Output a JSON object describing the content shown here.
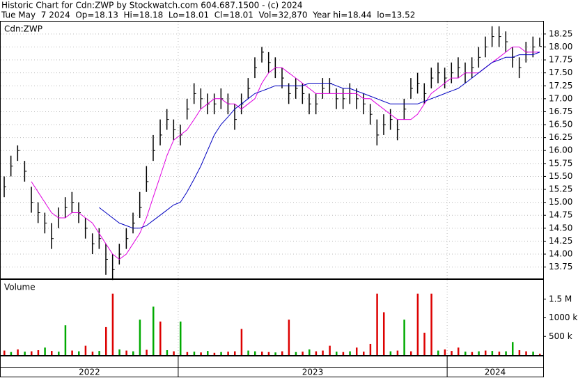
{
  "header": {
    "title": "Historic Chart for Cdn:ZWP by Stockwatch.com 604.687.1500 - (c) 2024",
    "quote": "Tue May  7 2024  Op=18.13  Hi=18.18  Lo=18.01  Cl=18.01  Vol=32,870  Year hi=18.44  lo=13.52"
  },
  "chart_data": [
    {
      "type": "ohlc",
      "label": "Cdn:ZWP",
      "color": "#000000",
      "grid": true,
      "x": [
        2022.353,
        2022.378,
        2022.403,
        2022.429,
        2022.454,
        2022.479,
        2022.504,
        2022.529,
        2022.555,
        2022.58,
        2022.605,
        2022.63,
        2022.655,
        2022.681,
        2022.706,
        2022.731,
        2022.756,
        2022.781,
        2022.807,
        2022.832,
        2022.857,
        2022.882,
        2022.907,
        2022.933,
        2022.958,
        2022.983,
        2023.008,
        2023.033,
        2023.059,
        2023.084,
        2023.109,
        2023.134,
        2023.159,
        2023.185,
        2023.21,
        2023.235,
        2023.26,
        2023.285,
        2023.311,
        2023.336,
        2023.361,
        2023.386,
        2023.411,
        2023.437,
        2023.462,
        2023.487,
        2023.512,
        2023.537,
        2023.563,
        2023.588,
        2023.613,
        2023.638,
        2023.663,
        2023.689,
        2023.714,
        2023.739,
        2023.764,
        2023.789,
        2023.815,
        2023.84,
        2023.865,
        2023.89,
        2023.915,
        2023.941,
        2023.966,
        2023.991,
        2024.016,
        2024.041,
        2024.067,
        2024.092,
        2024.117,
        2024.142,
        2024.167,
        2024.193,
        2024.218,
        2024.243,
        2024.268,
        2024.293,
        2024.319,
        2024.344
      ],
      "high": [
        15.5,
        15.9,
        16.1,
        15.8,
        15.3,
        15.0,
        14.8,
        14.6,
        14.9,
        15.1,
        15.2,
        15.0,
        14.7,
        14.4,
        14.5,
        14.2,
        14.0,
        14.2,
        14.5,
        14.8,
        15.2,
        15.7,
        16.3,
        16.6,
        16.8,
        16.6,
        16.5,
        17.0,
        17.3,
        17.2,
        17.1,
        17.1,
        17.2,
        17.1,
        16.9,
        17.1,
        17.4,
        17.8,
        18.0,
        17.9,
        17.8,
        17.6,
        17.3,
        17.4,
        17.3,
        17.1,
        17.1,
        17.4,
        17.4,
        17.2,
        17.2,
        17.3,
        17.2,
        17.1,
        16.9,
        16.6,
        16.7,
        16.8,
        16.6,
        17.0,
        17.4,
        17.5,
        17.3,
        17.6,
        17.7,
        17.6,
        17.7,
        17.8,
        17.7,
        17.8,
        18.0,
        18.2,
        18.4,
        18.4,
        18.3,
        18.0,
        17.8,
        18.1,
        18.2,
        18.18
      ],
      "low": [
        15.1,
        15.5,
        15.8,
        15.4,
        14.8,
        14.6,
        14.4,
        14.1,
        14.5,
        14.7,
        14.8,
        14.6,
        14.3,
        14.0,
        14.1,
        13.6,
        13.5,
        13.8,
        14.1,
        14.4,
        14.7,
        15.2,
        15.8,
        16.1,
        16.4,
        16.2,
        16.1,
        16.6,
        16.9,
        16.8,
        16.7,
        16.7,
        16.8,
        16.7,
        16.4,
        16.7,
        17.0,
        17.4,
        17.7,
        17.5,
        17.4,
        17.2,
        16.9,
        17.0,
        16.9,
        16.7,
        16.7,
        17.0,
        17.1,
        16.8,
        16.8,
        16.9,
        16.8,
        16.7,
        16.5,
        16.1,
        16.3,
        16.4,
        16.2,
        16.6,
        17.0,
        17.1,
        16.9,
        17.2,
        17.3,
        17.2,
        17.3,
        17.4,
        17.3,
        17.4,
        17.6,
        17.8,
        18.0,
        18.0,
        17.9,
        17.6,
        17.4,
        17.7,
        17.8,
        18.01
      ],
      "close": [
        15.3,
        15.7,
        16.0,
        15.6,
        15.0,
        14.8,
        14.6,
        14.3,
        14.7,
        14.9,
        15.0,
        14.8,
        14.5,
        14.2,
        14.3,
        13.9,
        13.7,
        14.0,
        14.3,
        14.6,
        14.9,
        15.4,
        16.0,
        16.3,
        16.6,
        16.4,
        16.3,
        16.8,
        17.1,
        17.0,
        16.9,
        16.9,
        17.0,
        16.9,
        16.6,
        16.9,
        17.2,
        17.6,
        17.9,
        17.7,
        17.6,
        17.4,
        17.1,
        17.2,
        17.1,
        16.9,
        16.9,
        17.2,
        17.3,
        17.0,
        17.0,
        17.1,
        17.0,
        16.9,
        16.7,
        16.3,
        16.5,
        16.6,
        16.4,
        16.8,
        17.2,
        17.3,
        17.1,
        17.4,
        17.5,
        17.4,
        17.5,
        17.6,
        17.5,
        17.6,
        17.8,
        18.0,
        18.2,
        18.2,
        18.1,
        17.8,
        17.6,
        17.9,
        18.0,
        18.01
      ],
      "moving_averages": [
        {
          "color": "#e000e0",
          "values": [
            null,
            null,
            null,
            null,
            15.4,
            15.2,
            15.0,
            14.8,
            14.7,
            14.7,
            14.8,
            14.8,
            14.7,
            14.6,
            14.4,
            14.2,
            14.0,
            13.9,
            14.0,
            14.2,
            14.4,
            14.7,
            15.1,
            15.5,
            15.9,
            16.2,
            16.3,
            16.4,
            16.6,
            16.8,
            16.9,
            17.0,
            17.0,
            16.9,
            16.9,
            16.8,
            16.9,
            17.0,
            17.3,
            17.5,
            17.6,
            17.6,
            17.5,
            17.4,
            17.3,
            17.2,
            17.1,
            17.1,
            17.1,
            17.1,
            17.1,
            17.1,
            17.1,
            17.0,
            17.0,
            16.9,
            16.8,
            16.7,
            16.6,
            16.6,
            16.6,
            16.7,
            16.9,
            17.1,
            17.2,
            17.3,
            17.4,
            17.4,
            17.5,
            17.5,
            17.5,
            17.6,
            17.7,
            17.8,
            17.9,
            18.0,
            18.0,
            17.9,
            17.9,
            17.9
          ]
        },
        {
          "color": "#0000c0",
          "values": [
            null,
            null,
            null,
            null,
            null,
            null,
            null,
            null,
            null,
            null,
            null,
            null,
            null,
            null,
            14.9,
            14.8,
            14.7,
            14.6,
            14.55,
            14.5,
            14.5,
            14.55,
            14.65,
            14.75,
            14.85,
            14.95,
            15.0,
            15.2,
            15.45,
            15.7,
            16.0,
            16.3,
            16.5,
            16.65,
            16.8,
            16.9,
            17.0,
            17.1,
            17.15,
            17.2,
            17.25,
            17.25,
            17.25,
            17.25,
            17.25,
            17.3,
            17.3,
            17.3,
            17.3,
            17.25,
            17.2,
            17.2,
            17.15,
            17.1,
            17.05,
            17.0,
            16.95,
            16.9,
            16.9,
            16.9,
            16.9,
            16.9,
            16.95,
            17.0,
            17.05,
            17.1,
            17.15,
            17.2,
            17.3,
            17.4,
            17.5,
            17.6,
            17.7,
            17.75,
            17.8,
            17.8,
            17.85,
            17.85,
            17.85,
            17.9
          ]
        }
      ],
      "xlim": [
        2022.34,
        2024.357
      ],
      "xticks": [
        2022,
        2023,
        2024
      ],
      "ylim": [
        13.53,
        18.49
      ],
      "yticks": [
        13.75,
        {
          "value": 14,
          "label": "14.00"
        },
        14.25,
        {
          "value": 14.5,
          "label": "14.50"
        },
        14.75,
        {
          "value": 15,
          "label": "15.00"
        },
        15.25,
        {
          "value": 15.5,
          "label": "15.50"
        },
        15.75,
        {
          "value": 16,
          "label": "16.00"
        },
        16.25,
        {
          "value": 16.5,
          "label": "16.50"
        },
        16.75,
        {
          "value": 17,
          "label": "17.00"
        },
        17.25,
        {
          "value": 17.5,
          "label": "17.50"
        },
        17.75,
        {
          "value": 18,
          "label": "18.00"
        },
        18.25
      ]
    },
    {
      "type": "bar",
      "label": "Volume",
      "values": [
        120000,
        80000,
        150000,
        90000,
        100000,
        130000,
        200000,
        110000,
        90000,
        800000,
        120000,
        100000,
        250000,
        90000,
        110000,
        750000,
        1650000,
        150000,
        120000,
        100000,
        950000,
        140000,
        1300000,
        900000,
        130000,
        100000,
        900000,
        80000,
        90000,
        70000,
        110000,
        60000,
        80000,
        90000,
        100000,
        700000,
        120000,
        100000,
        90000,
        80000,
        70000,
        100000,
        950000,
        80000,
        90000,
        150000,
        100000,
        120000,
        250000,
        90000,
        80000,
        100000,
        200000,
        90000,
        300000,
        1650000,
        1150000,
        100000,
        120000,
        950000,
        100000,
        1650000,
        600000,
        1650000,
        120000,
        150000,
        110000,
        200000,
        90000,
        80000,
        100000,
        120000,
        110000,
        90000,
        100000,
        350000,
        130000,
        100000,
        90000,
        32870
      ],
      "colors": [
        "#dd0000",
        "#00aa00",
        "#dd0000",
        "#00aa00",
        "#dd0000",
        "#dd0000",
        "#00aa00",
        "#dd0000",
        "#00aa00",
        "#00aa00",
        "#dd0000",
        "#00aa00",
        "#dd0000",
        "#dd0000",
        "#00aa00",
        "#dd0000",
        "#dd0000",
        "#00aa00",
        "#dd0000",
        "#00aa00",
        "#00aa00",
        "#dd0000",
        "#00aa00",
        "#dd0000",
        "#00aa00",
        "#dd0000",
        "#00aa00",
        "#dd0000",
        "#00aa00",
        "#dd0000",
        "#00aa00",
        "#dd0000",
        "#00aa00",
        "#dd0000",
        "#dd0000",
        "#dd0000",
        "#00aa00",
        "#00aa00",
        "#dd0000",
        "#dd0000",
        "#00aa00",
        "#dd0000",
        "#dd0000",
        "#00aa00",
        "#dd0000",
        "#00aa00",
        "#dd0000",
        "#dd0000",
        "#dd0000",
        "#00aa00",
        "#dd0000",
        "#00aa00",
        "#dd0000",
        "#dd0000",
        "#dd0000",
        "#dd0000",
        "#dd0000",
        "#00aa00",
        "#dd0000",
        "#00aa00",
        "#dd0000",
        "#dd0000",
        "#dd0000",
        "#dd0000",
        "#00aa00",
        "#dd0000",
        "#dd0000",
        "#dd0000",
        "#00aa00",
        "#dd0000",
        "#00aa00",
        "#dd0000",
        "#00aa00",
        "#dd0000",
        "#00aa00",
        "#00aa00",
        "#dd0000",
        "#dd0000",
        "#00aa00",
        "#dd0000"
      ],
      "ylim": [
        0,
        2020000
      ],
      "yticks": [
        {
          "value": 500000,
          "label": "500 k"
        },
        {
          "value": 1000000,
          "label": "1000 k"
        },
        {
          "value": 1500000,
          "label": "1.5 M"
        }
      ]
    }
  ]
}
